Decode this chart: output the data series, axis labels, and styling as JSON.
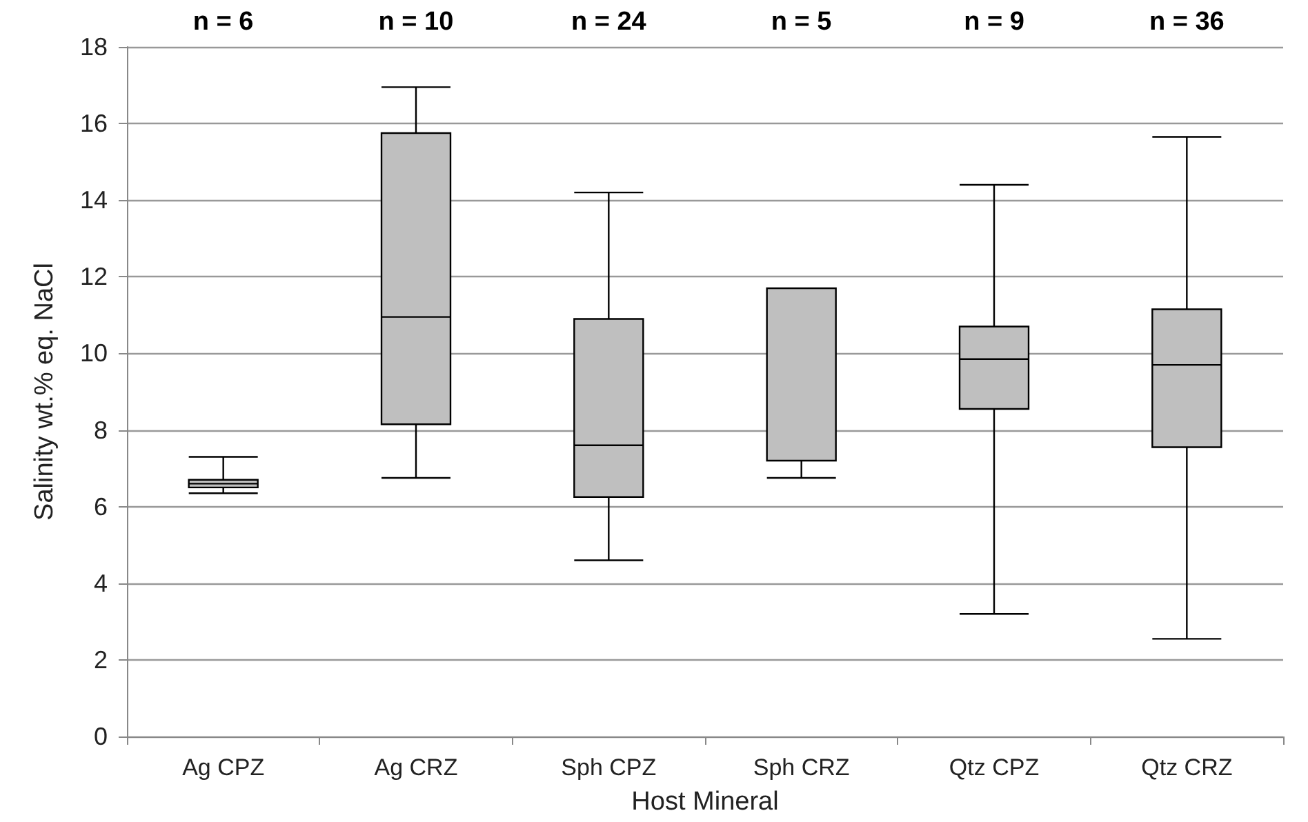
{
  "chart_data": {
    "type": "box",
    "xlabel": "Host Mineral",
    "ylabel": "Salinity wt.% eq. NaCl",
    "categories": [
      "Ag CPZ",
      "Ag CRZ",
      "Sph CPZ",
      "Sph CRZ",
      "Qtz CPZ",
      "Qtz CRZ"
    ],
    "series": [
      {
        "color": "#bfbfbf",
        "boxes": [
          {
            "low": 6.35,
            "q1": 6.5,
            "median": 6.6,
            "q3": 6.7,
            "high": 7.3
          },
          {
            "low": 6.75,
            "q1": 8.15,
            "median": 10.95,
            "q3": 15.75,
            "high": 16.95
          },
          {
            "low": 4.6,
            "q1": 6.25,
            "median": 7.6,
            "q3": 10.9,
            "high": 14.2
          },
          {
            "low": 6.75,
            "q1": 7.2,
            "median": 11.7,
            "q3": 11.7,
            "high": 11.7
          },
          {
            "low": 3.2,
            "q1": 8.55,
            "median": 9.85,
            "q3": 10.7,
            "high": 14.4
          },
          {
            "low": 2.55,
            "q1": 7.55,
            "median": 9.7,
            "q3": 11.15,
            "high": 15.65
          }
        ]
      }
    ],
    "ylim": [
      0,
      18
    ],
    "yticks": [
      0,
      2,
      4,
      6,
      8,
      10,
      12,
      14,
      16,
      18
    ],
    "grid": "y",
    "annotations": [
      "n = 6",
      "n = 10",
      "n = 24",
      "n = 5",
      "n = 9",
      "n = 36"
    ]
  }
}
